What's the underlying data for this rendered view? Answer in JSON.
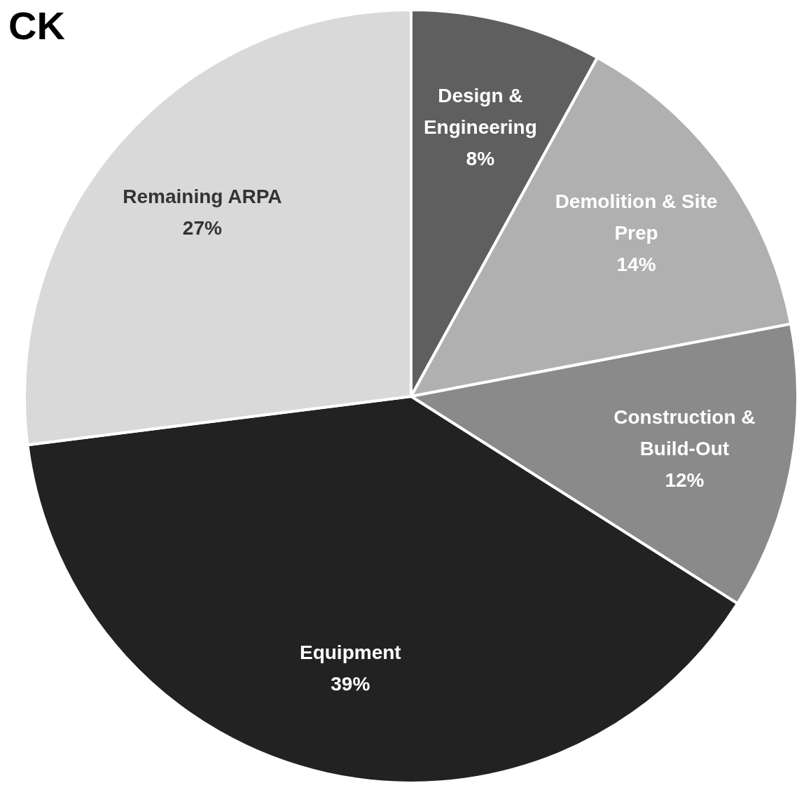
{
  "chart_data": {
    "type": "pie",
    "title": "CK",
    "categories": [
      "Design & Engineering",
      "Demolition & Site Prep",
      "Construction & Build-Out",
      "Equipment",
      "Remaining ARPA"
    ],
    "values": [
      8,
      14,
      12,
      39,
      27
    ],
    "colors": [
      "#5f5f5f",
      "#b0b0b0",
      "#8a8a8a",
      "#222222",
      "#d9d9d9"
    ],
    "value_labels": [
      "8%",
      "14%",
      "12%",
      "39%",
      "27%"
    ]
  }
}
